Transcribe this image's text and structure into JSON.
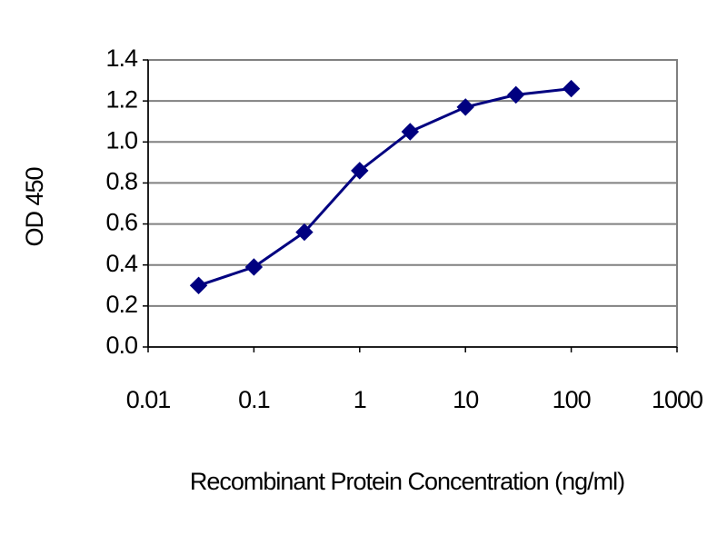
{
  "chart_data": {
    "type": "line",
    "x_label": "Recombinant Protein Concentration (ng/ml)",
    "y_label": "OD 450",
    "x": [
      0.03,
      0.1,
      0.3,
      1,
      3,
      10,
      30,
      100
    ],
    "values": [
      0.3,
      0.39,
      0.56,
      0.86,
      1.05,
      1.17,
      1.23,
      1.26
    ],
    "color": "#000080",
    "x_log": true,
    "xlim": [
      0.01,
      1000
    ],
    "xticks": [
      0.01,
      0.1,
      1,
      10,
      100,
      1000
    ],
    "ylim": [
      0,
      1.4
    ],
    "yticks": [
      {
        "value": 0,
        "label": "0.0"
      },
      0.2,
      0.4,
      0.6,
      0.8,
      {
        "value": 1,
        "label": "1.0"
      },
      1.2,
      1.4
    ],
    "grid": true
  }
}
